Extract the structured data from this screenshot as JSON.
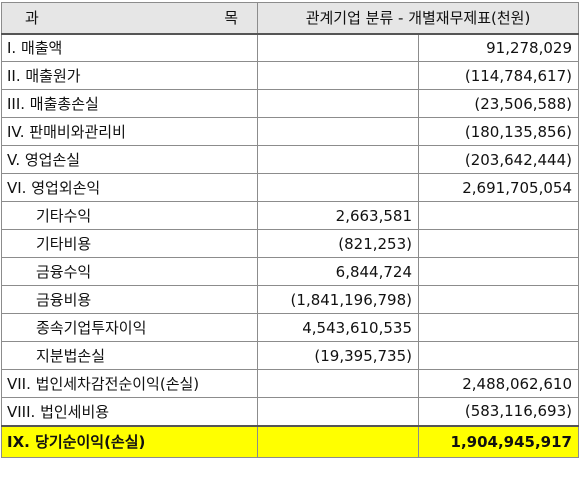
{
  "header": {
    "col1_left": "과",
    "col1_right": "목",
    "col23": "관계기업 분류 - 개별재무제표(천원)"
  },
  "rows": [
    {
      "label": "I. 매출액",
      "mid": "",
      "right": "91,278,029",
      "indent": false
    },
    {
      "label": "II. 매출원가",
      "mid": "",
      "right": "(114,784,617)",
      "indent": false
    },
    {
      "label": "III. 매출총손실",
      "mid": "",
      "right": "(23,506,588)",
      "indent": false
    },
    {
      "label": "IV. 판매비와관리비",
      "mid": "",
      "right": "(180,135,856)",
      "indent": false
    },
    {
      "label": "V. 영업손실",
      "mid": "",
      "right": "(203,642,444)",
      "indent": false
    },
    {
      "label": "VI. 영업외손익",
      "mid": "",
      "right": "2,691,705,054",
      "indent": false
    },
    {
      "label": "기타수익",
      "mid": "2,663,581",
      "right": "",
      "indent": true
    },
    {
      "label": "기타비용",
      "mid": "(821,253)",
      "right": "",
      "indent": true
    },
    {
      "label": "금융수익",
      "mid": "6,844,724",
      "right": "",
      "indent": true
    },
    {
      "label": "금융비용",
      "mid": "(1,841,196,798)",
      "right": "",
      "indent": true
    },
    {
      "label": "종속기업투자이익",
      "mid": "4,543,610,535",
      "right": "",
      "indent": true
    },
    {
      "label": "지분법손실",
      "mid": "(19,395,735)",
      "right": "",
      "indent": true
    },
    {
      "label": "VII. 법인세차감전순이익(손실)",
      "mid": "",
      "right": "2,488,062,610",
      "indent": false
    },
    {
      "label": "VIII. 법인세비용",
      "mid": "",
      "right": "(583,116,693)",
      "indent": false
    }
  ],
  "total": {
    "label": "IX. 당기순이익(손실)",
    "mid": "",
    "right": "1,904,945,917"
  },
  "colors": {
    "header_bg": "#e6e6e6",
    "total_bg": "#ffff00",
    "border": "#8c8c8c"
  }
}
